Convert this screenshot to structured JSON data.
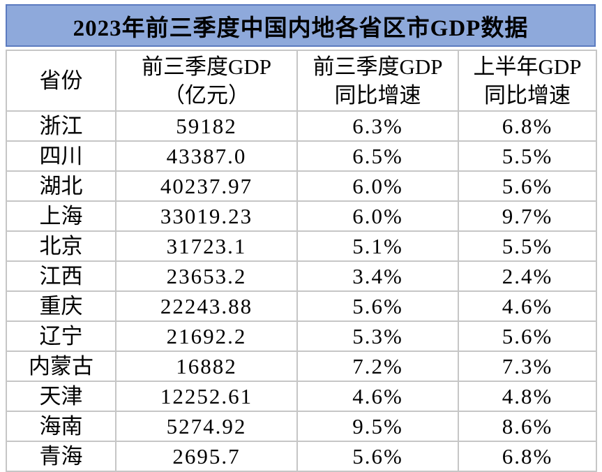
{
  "colors": {
    "title_background": "#8EA9DB",
    "title_border": "#5B7BC0",
    "gridline": "#C6C6C6",
    "text": "#000000",
    "page_background": "#FFFFFF"
  },
  "header": {
    "col1": "省份",
    "col2_line1": "前三季度GDP",
    "col2_line2": "（亿元）",
    "col3_line1": "前三季度GDP",
    "col3_line2": "同比增速",
    "col4_line1": "上半年GDP",
    "col4_line2": "同比增速"
  },
  "chart_data": {
    "type": "table",
    "title": "2023年前三季度中国内地各省区市GDP数据",
    "columns": [
      "省份",
      "前三季度GDP（亿元）",
      "前三季度GDP同比增速",
      "上半年GDP同比增速"
    ],
    "rows": [
      [
        "浙江",
        "59182",
        "6.3%",
        "6.8%"
      ],
      [
        "四川",
        "43387.0",
        "6.5%",
        "5.5%"
      ],
      [
        "湖北",
        "40237.97",
        "6.0%",
        "5.6%"
      ],
      [
        "上海",
        "33019.23",
        "6.0%",
        "9.7%"
      ],
      [
        "北京",
        "31723.1",
        "5.1%",
        "5.5%"
      ],
      [
        "江西",
        "23653.2",
        "3.4%",
        "2.4%"
      ],
      [
        "重庆",
        "22243.88",
        "5.6%",
        "4.6%"
      ],
      [
        "辽宁",
        "21692.2",
        "5.3%",
        "5.6%"
      ],
      [
        "内蒙古",
        "16882",
        "7.2%",
        "7.3%"
      ],
      [
        "天津",
        "12252.61",
        "4.6%",
        "4.8%"
      ],
      [
        "海南",
        "5274.92",
        "9.5%",
        "8.6%"
      ],
      [
        "青海",
        "2695.7",
        "5.6%",
        "6.8%"
      ]
    ],
    "units": "亿元",
    "gdp_values_numeric": [
      59182,
      43387.0,
      40237.97,
      33019.23,
      31723.1,
      23653.2,
      22243.88,
      21692.2,
      16882,
      12252.61,
      5274.92,
      2695.7
    ],
    "q3_growth_pct": [
      6.3,
      6.5,
      6.0,
      6.0,
      5.1,
      3.4,
      5.6,
      5.3,
      7.2,
      4.6,
      9.5,
      5.6
    ],
    "h1_growth_pct": [
      6.8,
      5.5,
      5.6,
      9.7,
      5.5,
      2.4,
      4.6,
      5.6,
      7.3,
      4.8,
      8.6,
      6.8
    ]
  }
}
